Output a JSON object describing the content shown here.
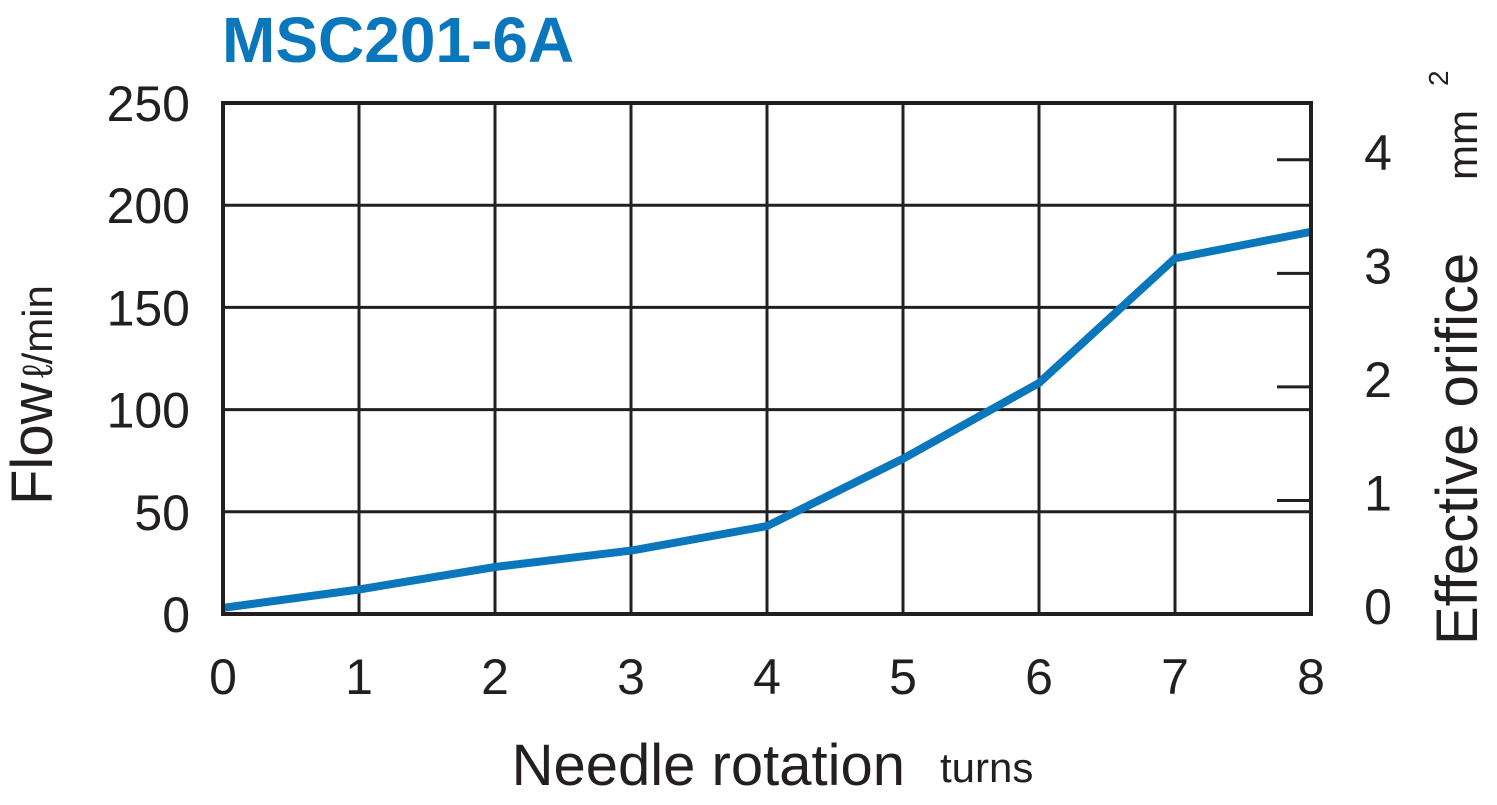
{
  "colors": {
    "accent": "#0a77bd",
    "ink": "#231f20",
    "background": "#ffffff"
  },
  "chart_data": {
    "type": "line",
    "title": "MSC201-6A",
    "xlabel": "Needle rotation",
    "xlabel_unit": "turns",
    "ylabel": "Flow",
    "ylabel_unit": "ℓ/min",
    "y2label": "Effective orifice",
    "y2label_unit": "mm",
    "y2label_unit_sup": "2",
    "xlim": [
      0,
      8
    ],
    "ylim": [
      0,
      250
    ],
    "y2lim": [
      0,
      4.5
    ],
    "x_ticks": [
      "0",
      "1",
      "2",
      "3",
      "4",
      "5",
      "6",
      "7",
      "8"
    ],
    "y_ticks": [
      "0",
      "50",
      "100",
      "150",
      "200",
      "250"
    ],
    "y2_ticks": [
      "0",
      "1",
      "2",
      "3",
      "4"
    ],
    "grid": true,
    "series": [
      {
        "x": [
          0,
          1,
          2,
          3,
          4,
          5,
          6,
          7,
          8
        ],
        "y": [
          3,
          12,
          23,
          31,
          43,
          76,
          113,
          174,
          187
        ],
        "color": "#0a77bd"
      }
    ]
  }
}
